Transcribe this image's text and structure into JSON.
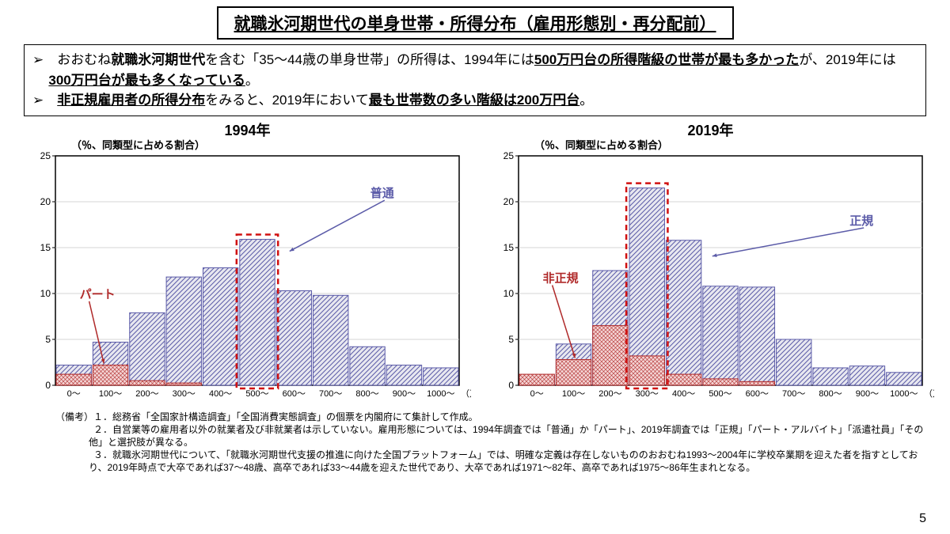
{
  "title": "就職氷河期世代の単身世帯・所得分布（雇用形態別・再分配前）",
  "summary": {
    "line1_a": "➢　おおむね",
    "line1_b": "就職氷河期世代",
    "line1_c": "を含む「35～44歳の単身世帯」の所得は、1994年には",
    "line1_d": "500万円台の所得階級の世帯が最も多かった",
    "line1_e": "が、2019年には",
    "line1_f": "300万円台が最も多くなっている",
    "line1_g": "。",
    "line2_a": "➢　",
    "line2_b": "非正規雇用者の所得分布",
    "line2_c": "をみると、2019年において",
    "line2_d": "最も世帯数の多い階級は200万円台",
    "line2_e": "。"
  },
  "charts": {
    "sublabel": "（％、同類型に占める割合）",
    "left": {
      "year": "1994年",
      "categories": [
        "0～",
        "100～",
        "200～",
        "300～",
        "400～",
        "500～",
        "600～",
        "700～",
        "800～",
        "900～",
        "1000～"
      ],
      "xaxis_unit": "（万円）",
      "series_hatched": [
        2.2,
        4.7,
        7.9,
        11.8,
        12.8,
        15.9,
        10.3,
        9.8,
        4.2,
        2.2,
        1.9
      ],
      "series_dotted": [
        1.2,
        2.2,
        0.5,
        0.25,
        0.0,
        0.0,
        0.0,
        0.0,
        0.0,
        0.0,
        0.0
      ],
      "highlight_index": 5,
      "label_hatched": "普通",
      "label_dotted": "パート",
      "label_hatched_color": "#5b5ba8",
      "label_dotted_color": "#b02a2a"
    },
    "right": {
      "year": "2019年",
      "categories": [
        "0～",
        "100～",
        "200～",
        "300～",
        "400～",
        "500～",
        "600～",
        "700～",
        "800～",
        "900～",
        "1000～"
      ],
      "xaxis_unit": "（万円）",
      "series_hatched": [
        1.1,
        4.5,
        12.5,
        21.5,
        15.8,
        10.8,
        10.7,
        5.0,
        1.9,
        2.1,
        1.4
      ],
      "series_dotted": [
        1.2,
        2.8,
        6.5,
        3.2,
        1.2,
        0.7,
        0.4,
        0.0,
        0.0,
        0.0,
        0.0
      ],
      "highlight_index": 3,
      "label_hatched": "正規",
      "label_dotted": "非正規",
      "label_hatched_color": "#5b5ba8",
      "label_dotted_color": "#b02a2a"
    },
    "style": {
      "ylim": [
        0,
        25
      ],
      "ytick_step": 5,
      "hatched_fill": "#e8e8f0",
      "hatched_stroke": "#5b5ba8",
      "dotted_fill": "#f4d4d4",
      "dotted_stroke": "#b02a2a",
      "highlight_stroke": "#d01010",
      "axis_color": "#000000",
      "grid_color": "#c8c8c8",
      "tick_fontsize": 12
    }
  },
  "notes": {
    "prefix": "（備考）",
    "n1": "１．総務省「全国家計構造調査」「全国消費実態調査」の個票を内閣府にて集計して作成。",
    "n2": "２．自営業等の雇用者以外の就業者及び非就業者は示していない。雇用形態については、1994年調査では「普通」か「パート」、2019年調査では「正規」「パート・アルバイト」「派遣社員」「その他」と選択肢が異なる。",
    "n3": "３．就職氷河期世代について、「就職氷河期世代支援の推進に向けた全国プラットフォーム」では、明確な定義は存在しないもののおおむね1993～2004年に学校卒業期を迎えた者を指すとしており、2019年時点で大卒であれば37～48歳、高卒であれば33～44歳を迎えた世代であり、大卒であれば1971～82年、高卒であれば1975～86年生まれとなる。"
  },
  "page": "5"
}
